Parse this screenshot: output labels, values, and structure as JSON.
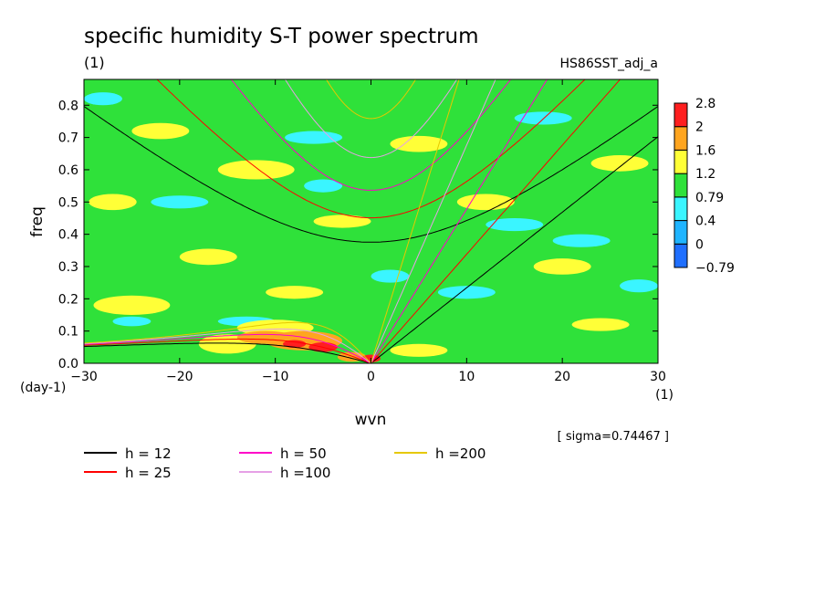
{
  "chart_data": {
    "type": "heatmap",
    "title": "specific humidity S-T power spectrum",
    "subtitle_left": "(1)",
    "subtitle_right": "HS86SST_adj_a",
    "xlabel": "wvn",
    "ylabel": "freq",
    "x_unit": "(1)",
    "y_unit": "(day-1)",
    "xlim": [
      -30,
      30
    ],
    "ylim": [
      0,
      0.88
    ],
    "x_ticks": [
      {
        "value": -30,
        "label": "−30"
      },
      {
        "value": -20,
        "label": "−20"
      },
      {
        "value": -10,
        "label": "−10"
      },
      {
        "value": 0,
        "label": "0"
      },
      {
        "value": 10,
        "label": "10"
      },
      {
        "value": 20,
        "label": "20"
      },
      {
        "value": 30,
        "label": "30"
      }
    ],
    "y_ticks": [
      {
        "value": 0.0,
        "label": "0.0"
      },
      {
        "value": 0.1,
        "label": "0.1"
      },
      {
        "value": 0.2,
        "label": "0.2"
      },
      {
        "value": 0.3,
        "label": "0.3"
      },
      {
        "value": 0.4,
        "label": "0.4"
      },
      {
        "value": 0.5,
        "label": "0.5"
      },
      {
        "value": 0.6,
        "label": "0.6"
      },
      {
        "value": 0.7,
        "label": "0.7"
      },
      {
        "value": 0.8,
        "label": "0.8"
      }
    ],
    "color_levels": [
      {
        "label": "−0.79",
        "color": "#1f6fff"
      },
      {
        "label": "0",
        "color": "#1fb4ff"
      },
      {
        "label": "0.4",
        "color": "#3af5ff"
      },
      {
        "label": "0.79",
        "color": "#2fe13a"
      },
      {
        "label": "1.2",
        "color": "#ffff37"
      },
      {
        "label": "1.6",
        "color": "#ffa51f"
      },
      {
        "label": "2",
        "color": "#ff1f1f"
      },
      {
        "label": "2.8",
        "color": ""
      }
    ],
    "background_level_color": "#2fe13a",
    "patches": [
      {
        "x": -25,
        "y": 0.18,
        "rx": 4,
        "ry": 0.03,
        "color": "#ffff37"
      },
      {
        "x": -17,
        "y": 0.33,
        "rx": 3,
        "ry": 0.025,
        "color": "#ffff37"
      },
      {
        "x": -8,
        "y": 0.22,
        "rx": 3,
        "ry": 0.02,
        "color": "#ffff37"
      },
      {
        "x": -12,
        "y": 0.6,
        "rx": 4,
        "ry": 0.03,
        "color": "#ffff37"
      },
      {
        "x": -22,
        "y": 0.72,
        "rx": 3,
        "ry": 0.025,
        "color": "#ffff37"
      },
      {
        "x": -27,
        "y": 0.5,
        "rx": 2.5,
        "ry": 0.025,
        "color": "#ffff37"
      },
      {
        "x": -3,
        "y": 0.44,
        "rx": 3,
        "ry": 0.02,
        "color": "#ffff37"
      },
      {
        "x": 5,
        "y": 0.68,
        "rx": 3,
        "ry": 0.025,
        "color": "#ffff37"
      },
      {
        "x": 12,
        "y": 0.5,
        "rx": 3,
        "ry": 0.025,
        "color": "#ffff37"
      },
      {
        "x": 20,
        "y": 0.3,
        "rx": 3,
        "ry": 0.025,
        "color": "#ffff37"
      },
      {
        "x": 26,
        "y": 0.62,
        "rx": 3,
        "ry": 0.025,
        "color": "#ffff37"
      },
      {
        "x": 24,
        "y": 0.12,
        "rx": 3,
        "ry": 0.02,
        "color": "#ffff37"
      },
      {
        "x": 5,
        "y": 0.04,
        "rx": 3,
        "ry": 0.02,
        "color": "#ffff37"
      },
      {
        "x": -28,
        "y": 0.82,
        "rx": 2,
        "ry": 0.02,
        "color": "#3af5ff"
      },
      {
        "x": -20,
        "y": 0.5,
        "rx": 3,
        "ry": 0.02,
        "color": "#3af5ff"
      },
      {
        "x": -13,
        "y": 0.13,
        "rx": 3,
        "ry": 0.015,
        "color": "#3af5ff"
      },
      {
        "x": -25,
        "y": 0.13,
        "rx": 2,
        "ry": 0.015,
        "color": "#3af5ff"
      },
      {
        "x": -6,
        "y": 0.7,
        "rx": 3,
        "ry": 0.02,
        "color": "#3af5ff"
      },
      {
        "x": -5,
        "y": 0.55,
        "rx": 2,
        "ry": 0.02,
        "color": "#3af5ff"
      },
      {
        "x": 2,
        "y": 0.27,
        "rx": 2,
        "ry": 0.02,
        "color": "#3af5ff"
      },
      {
        "x": 10,
        "y": 0.22,
        "rx": 3,
        "ry": 0.02,
        "color": "#3af5ff"
      },
      {
        "x": 15,
        "y": 0.43,
        "rx": 3,
        "ry": 0.02,
        "color": "#3af5ff"
      },
      {
        "x": 22,
        "y": 0.38,
        "rx": 3,
        "ry": 0.02,
        "color": "#3af5ff"
      },
      {
        "x": 18,
        "y": 0.76,
        "rx": 3,
        "ry": 0.02,
        "color": "#3af5ff"
      },
      {
        "x": 28,
        "y": 0.24,
        "rx": 2,
        "ry": 0.02,
        "color": "#3af5ff"
      },
      {
        "x": -15,
        "y": 0.06,
        "rx": 3,
        "ry": 0.03,
        "color": "#ffff37"
      },
      {
        "x": -10,
        "y": 0.11,
        "rx": 4,
        "ry": 0.025,
        "color": "#ffff37"
      },
      {
        "x": -7,
        "y": 0.07,
        "rx": 4,
        "ry": 0.03,
        "color": "#ffa51f"
      },
      {
        "x": -11,
        "y": 0.08,
        "rx": 3,
        "ry": 0.02,
        "color": "#ffa51f"
      },
      {
        "x": -5,
        "y": 0.05,
        "rx": 1.5,
        "ry": 0.015,
        "color": "#ff1f1f"
      },
      {
        "x": -8,
        "y": 0.06,
        "rx": 1.2,
        "ry": 0.012,
        "color": "#ff1f1f"
      },
      {
        "x": -2,
        "y": 0.02,
        "rx": 1.5,
        "ry": 0.015,
        "color": "#ffa51f"
      },
      {
        "x": 0,
        "y": 0.015,
        "rx": 1,
        "ry": 0.012,
        "color": "#ff1f1f"
      }
    ],
    "dispersion_series": [
      {
        "name": "h = 12",
        "h": 12,
        "color": "#000000"
      },
      {
        "name": "h = 25",
        "h": 25,
        "color": "#ff0000"
      },
      {
        "name": "h = 50",
        "h": 50,
        "color": "#ff00c8"
      },
      {
        "name": "h =100",
        "h": 100,
        "color": "#e6a0e6"
      },
      {
        "name": "h =200",
        "h": 200,
        "color": "#e6c800"
      }
    ],
    "sigma_note": "[ sigma=0.74467 ]",
    "grid": false
  }
}
